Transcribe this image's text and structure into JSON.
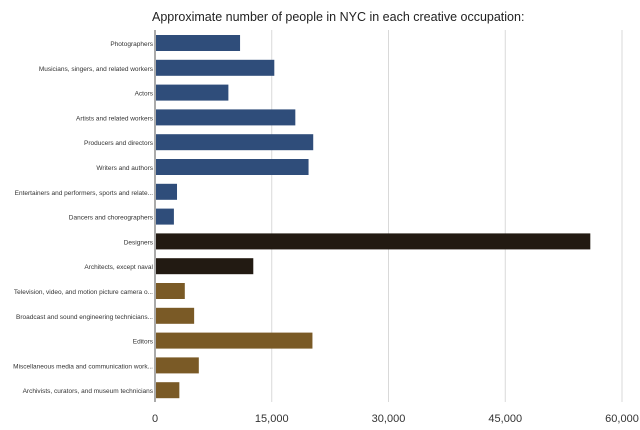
{
  "chart_data": {
    "type": "bar",
    "orientation": "horizontal",
    "title": "Approximate number of people in NYC in each creative occupation:",
    "xlabel": "",
    "ylabel": "",
    "xlim": [
      0,
      60000
    ],
    "grid": true,
    "legend": "none",
    "ticks": [
      "0",
      "15,000",
      "30,000",
      "45,000",
      "60,000"
    ],
    "tick_values": [
      0,
      15000,
      30000,
      45000,
      60000
    ],
    "categories": [
      "Photographers",
      "Musicians, singers, and related workers",
      "Actors",
      "Artists and related workers",
      "Producers and directors",
      "Writers and authors",
      "Entertainers and performers, sports and relate...",
      "Dancers and choreographers",
      "Designers",
      "Architects, except naval",
      "Television, video, and motion picture camera o...",
      "Broadcast and sound engineering technicians...",
      "Editors",
      "Miscellaneous media and communication work...",
      "Archivists, curators, and museum technicians"
    ],
    "values": [
      10800,
      15200,
      9300,
      17900,
      20200,
      19600,
      2700,
      2300,
      55800,
      12500,
      3700,
      4900,
      20100,
      5500,
      3000
    ],
    "colors": [
      "#2f4d7a",
      "#2f4d7a",
      "#2f4d7a",
      "#2f4d7a",
      "#2f4d7a",
      "#2f4d7a",
      "#2f4d7a",
      "#2f4d7a",
      "#221a12",
      "#221a12",
      "#7a5a26",
      "#7a5a26",
      "#7a5a26",
      "#7a5a26",
      "#7a5a26"
    ],
    "grid_color": "#d9d9d9",
    "axis_color": "#555555",
    "label_color": "#333333"
  }
}
